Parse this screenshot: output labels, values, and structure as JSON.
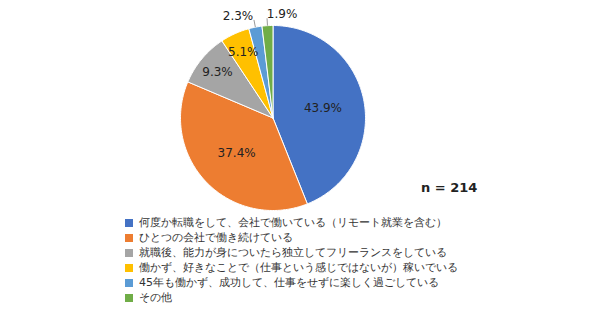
{
  "chart_data": {
    "type": "pie",
    "categories": [
      "何度か転職をして、会社で働いている（リモート就業を含む）",
      "ひとつの会社で働き続けている",
      "就職後、能力が身についたら独立してフリーランスをしている",
      "働かず、好きなことで（仕事という感じではないが）稼いでいる",
      "45年も働かず、成功して、仕事をせずに楽しく過ごしている",
      "その他"
    ],
    "values": [
      43.9,
      37.4,
      9.3,
      5.1,
      2.3,
      1.9
    ],
    "value_labels": [
      "43.9%",
      "37.4%",
      "9.3%",
      "5.1%",
      "2.3%",
      "1.9%"
    ],
    "colors": [
      "#4472c4",
      "#ed7d31",
      "#a5a5a5",
      "#ffc000",
      "#5b9bd5",
      "#70ad47"
    ],
    "data_labels": true,
    "legend": "bottom",
    "annotation": "n = 214"
  }
}
